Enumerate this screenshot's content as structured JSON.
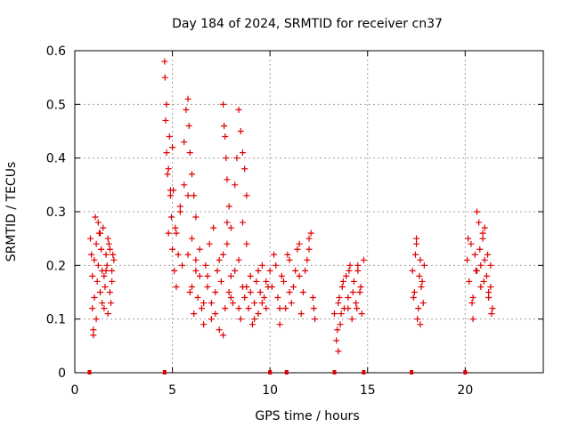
{
  "chart_data": {
    "type": "scatter",
    "title": "Day 184 of 2024, SRMTID for receiver cn37",
    "xlabel": "GPS time / hours",
    "ylabel": "SRMTID / TECUs",
    "xlim": [
      0,
      24
    ],
    "ylim": [
      0,
      0.6
    ],
    "xticks": [
      "0",
      "5",
      "10",
      "15",
      "20"
    ],
    "yticks": [
      "0",
      "0.1",
      "0.2",
      "0.3",
      "0.4",
      "0.5",
      "0.6"
    ],
    "grid": true,
    "marker": "+",
    "color": "#e00000",
    "series": [
      {
        "name": "SRMTID",
        "x": [
          0.8,
          0.85,
          0.9,
          0.95,
          1.0,
          1.05,
          1.1,
          1.15,
          1.2,
          1.25,
          1.3,
          1.35,
          1.4,
          1.45,
          1.5,
          1.55,
          1.6,
          1.65,
          1.7,
          1.75,
          1.8,
          1.85,
          1.9,
          1.95,
          2.0,
          0.9,
          1.0,
          1.1,
          1.3,
          1.5,
          1.7,
          1.9,
          0.95,
          1.2,
          1.4,
          1.6,
          1.8,
          4.6,
          4.62,
          4.65,
          4.7,
          4.75,
          4.8,
          4.85,
          4.9,
          4.95,
          5.0,
          5.05,
          5.1,
          5.15,
          5.2,
          5.3,
          5.4,
          5.5,
          5.6,
          5.7,
          5.8,
          5.9,
          6.0,
          6.1,
          6.2,
          6.3,
          6.4,
          6.5,
          6.6,
          6.7,
          6.8,
          6.9,
          7.0,
          7.1,
          7.2,
          7.3,
          7.4,
          7.5,
          7.6,
          7.7,
          7.8,
          7.9,
          8.0,
          8.1,
          8.2,
          8.3,
          8.4,
          8.5,
          8.6,
          8.7,
          8.8,
          8.9,
          9.0,
          9.1,
          9.2,
          9.3,
          9.4,
          9.5,
          9.6,
          9.7,
          9.8,
          9.9,
          4.7,
          4.8,
          4.9,
          5.0,
          5.2,
          5.4,
          5.6,
          5.8,
          6.0,
          6.2,
          6.4,
          6.6,
          6.8,
          7.0,
          7.2,
          7.4,
          7.6,
          7.8,
          8.0,
          8.2,
          8.4,
          8.6,
          8.8,
          9.0,
          9.2,
          9.4,
          9.6,
          9.8,
          5.8,
          5.85,
          5.9,
          6.0,
          6.1,
          6.2,
          7.6,
          7.65,
          7.7,
          7.75,
          7.8,
          7.9,
          8.0,
          8.4,
          8.5,
          8.6,
          8.7,
          8.8,
          10.0,
          10.2,
          10.4,
          10.6,
          10.8,
          11.0,
          11.2,
          11.4,
          11.6,
          11.8,
          12.0,
          12.2,
          12.3,
          10.1,
          10.3,
          10.5,
          10.7,
          10.9,
          11.1,
          11.3,
          11.5,
          11.7,
          11.9,
          12.1,
          12.25,
          10.5,
          11.0,
          11.5,
          12.0,
          13.3,
          13.4,
          13.5,
          13.6,
          13.7,
          13.8,
          13.9,
          14.0,
          14.1,
          14.2,
          14.3,
          14.4,
          14.5,
          14.6,
          14.7,
          14.8,
          13.45,
          13.55,
          13.65,
          13.75,
          14.05,
          14.25,
          14.45,
          14.65,
          13.5,
          14.0,
          14.5,
          17.3,
          17.4,
          17.5,
          17.6,
          17.7,
          17.8,
          17.9,
          17.35,
          17.45,
          17.55,
          17.65,
          17.75,
          17.85,
          17.5,
          17.7,
          20.1,
          20.2,
          20.3,
          20.4,
          20.5,
          20.6,
          20.7,
          20.8,
          20.9,
          21.0,
          21.1,
          21.2,
          21.3,
          21.4,
          20.15,
          20.35,
          20.55,
          20.75,
          20.95,
          21.15,
          21.35,
          20.6,
          20.8,
          21.0,
          21.2,
          20.4,
          20.9,
          21.3
        ],
        "y": [
          0.25,
          0.22,
          0.12,
          0.08,
          0.21,
          0.29,
          0.24,
          0.17,
          0.2,
          0.26,
          0.15,
          0.23,
          0.19,
          0.27,
          0.18,
          0.16,
          0.22,
          0.2,
          0.11,
          0.24,
          0.15,
          0.13,
          0.19,
          0.22,
          0.21,
          0.18,
          0.14,
          0.1,
          0.26,
          0.12,
          0.25,
          0.17,
          0.07,
          0.28,
          0.13,
          0.19,
          0.23,
          0.58,
          0.55,
          0.47,
          0.41,
          0.37,
          0.26,
          0.44,
          0.33,
          0.29,
          0.23,
          0.34,
          0.19,
          0.27,
          0.16,
          0.22,
          0.3,
          0.2,
          0.43,
          0.49,
          0.33,
          0.15,
          0.25,
          0.11,
          0.21,
          0.14,
          0.18,
          0.12,
          0.09,
          0.2,
          0.16,
          0.24,
          0.13,
          0.27,
          0.11,
          0.19,
          0.08,
          0.17,
          0.22,
          0.12,
          0.28,
          0.15,
          0.18,
          0.13,
          0.35,
          0.4,
          0.21,
          0.1,
          0.16,
          0.14,
          0.24,
          0.12,
          0.18,
          0.09,
          0.13,
          0.17,
          0.11,
          0.15,
          0.2,
          0.14,
          0.12,
          0.16,
          0.5,
          0.38,
          0.34,
          0.42,
          0.26,
          0.31,
          0.35,
          0.22,
          0.16,
          0.19,
          0.23,
          0.13,
          0.18,
          0.1,
          0.15,
          0.21,
          0.07,
          0.24,
          0.14,
          0.19,
          0.12,
          0.28,
          0.16,
          0.15,
          0.1,
          0.19,
          0.13,
          0.17,
          0.51,
          0.46,
          0.41,
          0.37,
          0.33,
          0.29,
          0.5,
          0.46,
          0.44,
          0.4,
          0.36,
          0.31,
          0.27,
          0.49,
          0.45,
          0.41,
          0.38,
          0.33,
          0.19,
          0.22,
          0.14,
          0.18,
          0.12,
          0.21,
          0.16,
          0.23,
          0.11,
          0.19,
          0.25,
          0.14,
          0.1,
          0.16,
          0.2,
          0.12,
          0.17,
          0.22,
          0.13,
          0.19,
          0.24,
          0.15,
          0.21,
          0.26,
          0.12,
          0.09,
          0.15,
          0.18,
          0.23,
          0.11,
          0.06,
          0.13,
          0.09,
          0.16,
          0.12,
          0.18,
          0.14,
          0.2,
          0.1,
          0.17,
          0.13,
          0.19,
          0.15,
          0.11,
          0.21,
          0.08,
          0.14,
          0.11,
          0.17,
          0.19,
          0.15,
          0.12,
          0.16,
          0.04,
          0.12,
          0.2,
          0.19,
          0.15,
          0.24,
          0.12,
          0.21,
          0.17,
          0.2,
          0.14,
          0.22,
          0.1,
          0.18,
          0.16,
          0.13,
          0.25,
          0.09,
          0.21,
          0.17,
          0.24,
          0.14,
          0.22,
          0.19,
          0.28,
          0.16,
          0.25,
          0.21,
          0.18,
          0.14,
          0.2,
          0.12,
          0.25,
          0.13,
          0.19,
          0.23,
          0.17,
          0.22,
          0.11,
          0.3,
          0.2,
          0.27,
          0.15,
          0.1,
          0.26,
          0.16
        ]
      }
    ],
    "gap_markers_x": [
      0.75,
      4.6,
      10.0,
      10.85,
      13.3,
      14.8,
      17.25,
      20.0
    ]
  }
}
